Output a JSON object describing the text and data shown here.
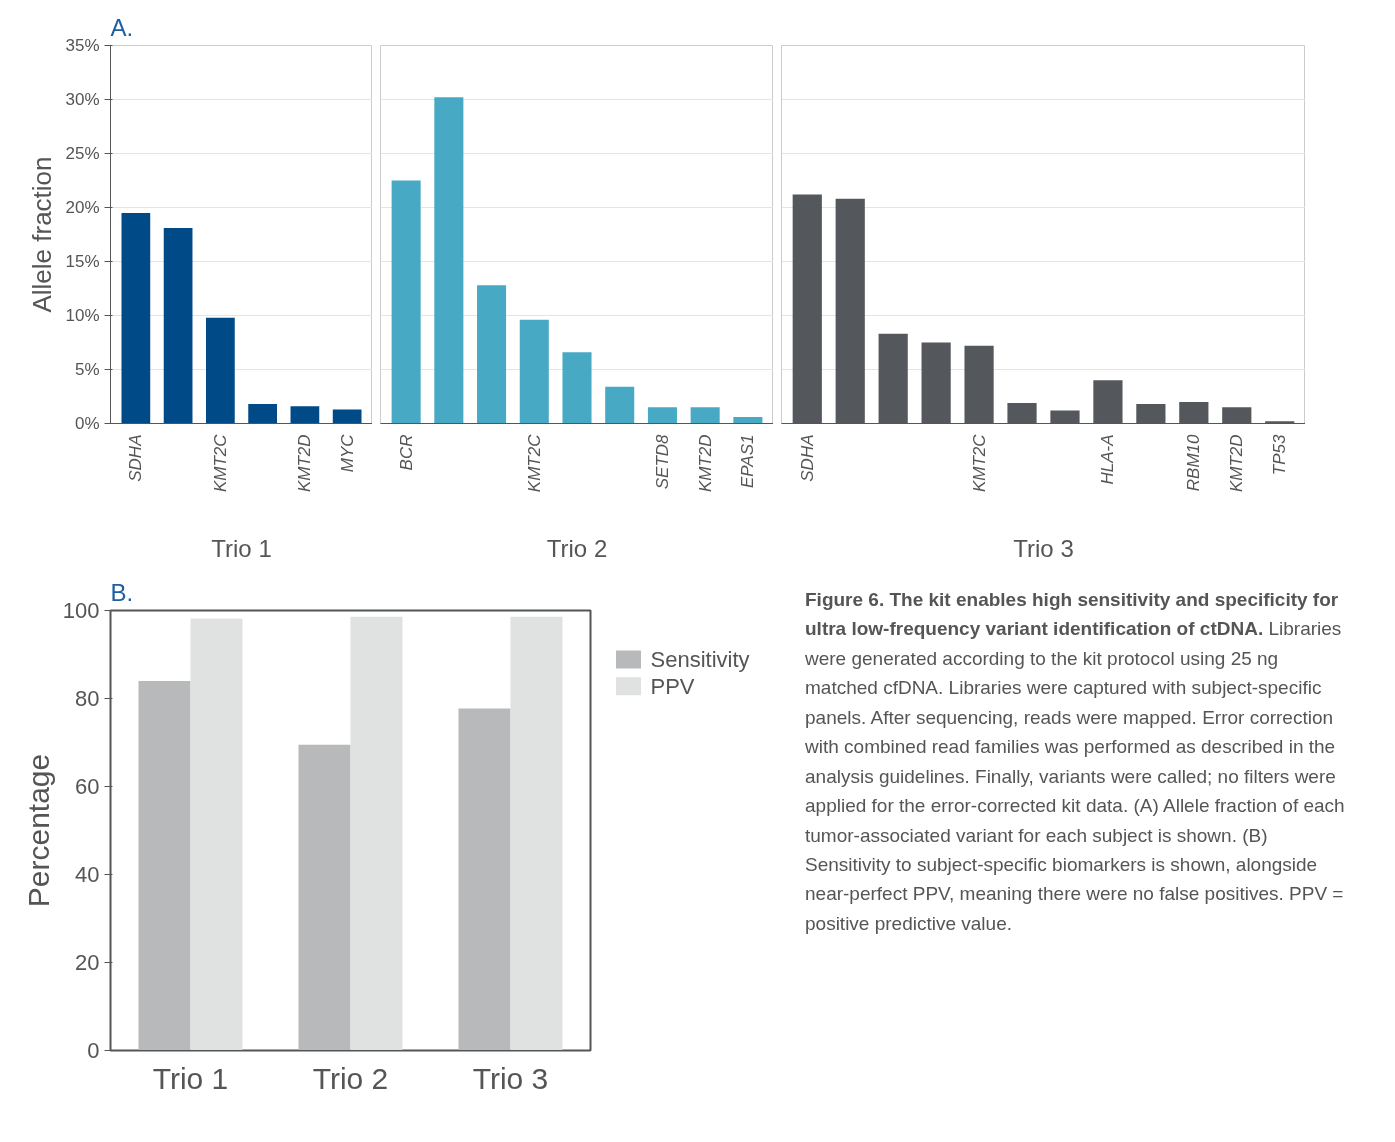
{
  "chart_data": [
    {
      "type": "bar",
      "title": "A.",
      "xlabel": "Trio 1",
      "ylabel": "Allele fraction",
      "color": "#004a87",
      "categories": [
        "SDHA",
        null,
        "KMT2C",
        null,
        "KMT2D",
        "MYC"
      ],
      "values": [
        19.5,
        18.1,
        9.8,
        1.8,
        1.6,
        1.3
      ],
      "ylim": [
        0,
        35
      ],
      "yticks": [
        {
          "value": 0,
          "label": "0%"
        },
        {
          "value": 5,
          "label": "5%"
        },
        {
          "value": 10,
          "label": "10%"
        },
        {
          "value": 15,
          "label": "15%"
        },
        {
          "value": 20,
          "label": "20%"
        },
        {
          "value": 25,
          "label": "25%"
        },
        {
          "value": 30,
          "label": "30%"
        },
        {
          "value": 35,
          "label": "35%"
        }
      ],
      "grid": "y"
    },
    {
      "type": "bar",
      "xlabel": "Trio 2",
      "color": "#48a9c5",
      "categories": [
        "BCR",
        null,
        null,
        "KMT2C",
        null,
        null,
        "SETD8",
        "KMT2D",
        "EPAS1"
      ],
      "values": [
        22.5,
        30.2,
        12.8,
        9.6,
        6.6,
        3.4,
        1.5,
        1.5,
        0.6
      ],
      "ylim": [
        0,
        35
      ],
      "yticks": [
        0,
        5,
        10,
        15,
        20,
        25,
        30,
        35
      ],
      "grid": "y",
      "tick_labels": "x"
    },
    {
      "type": "bar",
      "xlabel": "Trio 3",
      "color": "#54575c",
      "categories": [
        "SDHA",
        null,
        null,
        null,
        "KMT2C",
        null,
        null,
        "HLA-A",
        null,
        "RBM10",
        "KMT2D",
        "TP53"
      ],
      "values": [
        21.2,
        20.8,
        8.3,
        7.5,
        7.2,
        1.9,
        1.2,
        4.0,
        1.8,
        2.0,
        1.5,
        0.2
      ],
      "ylim": [
        0,
        35
      ],
      "yticks": [
        0,
        5,
        10,
        15,
        20,
        25,
        30,
        35
      ],
      "grid": "y",
      "tick_labels": "x"
    },
    {
      "type": "bar",
      "title": "B.",
      "ylabel": "Percentage",
      "categories": [
        "Trio 1",
        "Trio 2",
        "Trio 3"
      ],
      "series": [
        {
          "name": "Sensitivity",
          "color": "#b8b9bb",
          "values": [
            84.0,
            69.5,
            77.7
          ]
        },
        {
          "name": "PPV",
          "color": "#e0e1e1",
          "values": [
            98.2,
            98.6,
            98.6
          ]
        }
      ],
      "ylim": [
        0,
        100
      ],
      "yticks": [
        0,
        20,
        40,
        60,
        80,
        100
      ],
      "grid": false,
      "legend": "top right"
    },
    {
      "type": "other",
      "annotations": [
        "Figure 6. The kit enables high sensitivity and specificity for ultra low-frequency variant identification of ctDNA.",
        "Libraries were generated according to the kit protocol using 25 ng matched cfDNA. Libraries were captured with subject-specific panels. After sequencing, reads were mapped. Error correction with combined read families was performed as described in the analysis guidelines. Finally, variants were called; no filters were applied for the error-corrected kit data. (A) Allele fraction of each tumor-associated variant for each subject is shown. (B) Sensitivity to subject-specific biomarkers is shown, alongside near-perfect PPV, meaning there were no false positives. PPV = positive predictive value."
      ]
    }
  ]
}
